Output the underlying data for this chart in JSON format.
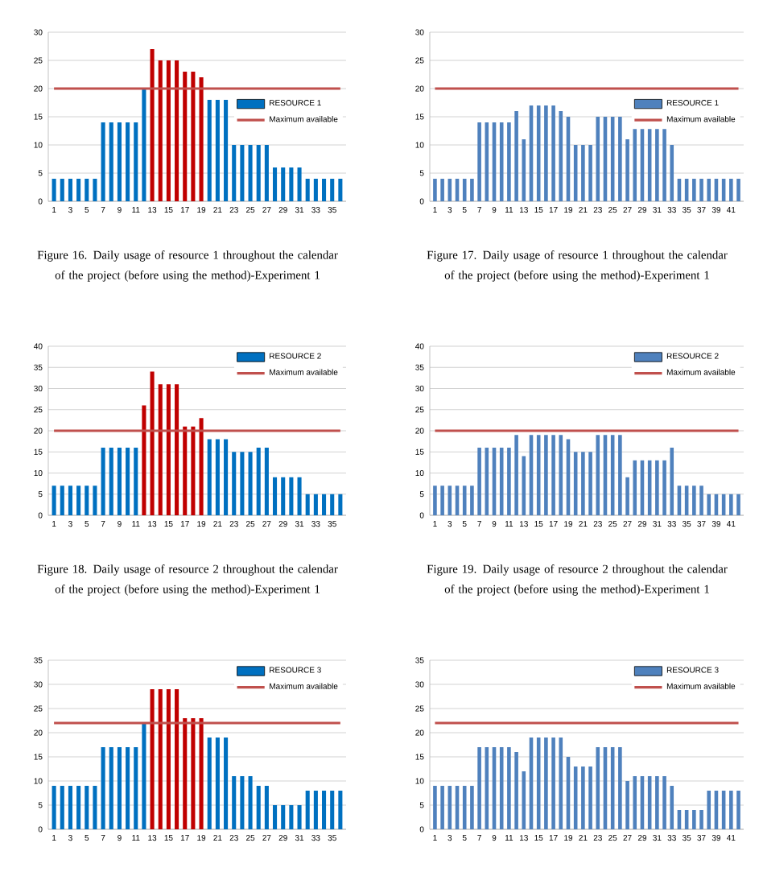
{
  "chart_data": [
    {
      "type": "bar",
      "categories": [
        "1",
        null,
        "3",
        null,
        "5",
        null,
        "7",
        null,
        "9",
        null,
        "11",
        null,
        "13",
        null,
        "15",
        null,
        "17",
        null,
        "19",
        null,
        "21",
        null,
        "23",
        null,
        "25",
        null,
        "27",
        null,
        "29",
        null,
        "31",
        null,
        "33",
        null,
        "35",
        null
      ],
      "ylim": [
        0,
        30
      ],
      "yticks": [
        0,
        5,
        10,
        15,
        20,
        25,
        30
      ],
      "grid": "y",
      "legend": "right",
      "annotations": [
        "Figure 16. Daily usage of resource 1 throughout the calendar of the project (before using the method)-Experiment 1"
      ],
      "series": [
        {
          "name": "RESOURCE 1",
          "color": "#0070c0",
          "values": [
            4,
            4,
            4,
            4,
            4,
            4,
            14,
            14,
            14,
            14,
            14,
            20,
            27,
            25,
            25,
            25,
            23,
            23,
            22,
            18,
            18,
            18,
            10,
            10,
            10,
            10,
            10,
            6,
            6,
            6,
            6,
            4,
            4,
            4,
            4,
            4
          ],
          "colors": [
            "#0070c0",
            "#0070c0",
            "#0070c0",
            "#0070c0",
            "#0070c0",
            "#0070c0",
            "#0070c0",
            "#0070c0",
            "#0070c0",
            "#0070c0",
            "#0070c0",
            "#0070c0",
            "#c00000",
            "#c00000",
            "#c00000",
            "#c00000",
            "#c00000",
            "#c00000",
            "#c00000",
            "#0070c0",
            "#0070c0",
            "#0070c0",
            "#0070c0",
            "#0070c0",
            "#0070c0",
            "#0070c0",
            "#0070c0",
            "#0070c0",
            "#0070c0",
            "#0070c0",
            "#0070c0",
            "#0070c0",
            "#0070c0",
            "#0070c0",
            "#0070c0",
            "#0070c0"
          ]
        },
        {
          "name": "Maximum available",
          "type": "line",
          "color": "#c0504d",
          "values": [
            20,
            20,
            20,
            20,
            20,
            20,
            20,
            20,
            20,
            20,
            20,
            20,
            20,
            20,
            20,
            20,
            20,
            20,
            20,
            20,
            20,
            20,
            20,
            20,
            20,
            20,
            20,
            20,
            20,
            20,
            20,
            20,
            20,
            20,
            20,
            20
          ]
        }
      ]
    },
    {
      "type": "bar",
      "categories": [
        "1",
        null,
        "3",
        null,
        "5",
        null,
        "7",
        null,
        "9",
        null,
        "11",
        null,
        "13",
        null,
        "15",
        null,
        "17",
        null,
        "19",
        null,
        "21",
        null,
        "23",
        null,
        "25",
        null,
        "27",
        null,
        "29",
        null,
        "31",
        null,
        "33",
        null,
        "35",
        null,
        "37",
        null,
        "39",
        null,
        "41",
        null
      ],
      "ylim": [
        0,
        30
      ],
      "yticks": [
        0,
        5,
        10,
        15,
        20,
        25,
        30
      ],
      "grid": "y",
      "legend": "right",
      "annotations": [
        "Figure 17. Daily usage of resource 1 throughout the calendar of the project (before using the method)-Experiment 1"
      ],
      "series": [
        {
          "name": "RESOURCE 1",
          "color": "#4f81bd",
          "values": [
            4,
            4,
            4,
            4,
            4,
            4,
            14,
            14,
            14,
            14,
            14,
            16,
            11,
            17,
            17,
            17,
            17,
            16,
            15,
            10,
            10,
            10,
            15,
            15,
            15,
            15,
            11,
            13,
            13,
            13,
            13,
            13,
            10,
            4,
            4,
            4,
            4,
            4,
            4,
            4,
            4,
            4
          ]
        },
        {
          "name": "Maximum available",
          "type": "line",
          "color": "#c0504d",
          "values": [
            20,
            20,
            20,
            20,
            20,
            20,
            20,
            20,
            20,
            20,
            20,
            20,
            20,
            20,
            20,
            20,
            20,
            20,
            20,
            20,
            20,
            20,
            20,
            20,
            20,
            20,
            20,
            20,
            20,
            20,
            20,
            20,
            20,
            20,
            20,
            20,
            20,
            20,
            20,
            20,
            20,
            20
          ]
        }
      ]
    },
    {
      "type": "bar",
      "categories": [
        "1",
        null,
        "3",
        null,
        "5",
        null,
        "7",
        null,
        "9",
        null,
        "11",
        null,
        "13",
        null,
        "15",
        null,
        "17",
        null,
        "19",
        null,
        "21",
        null,
        "23",
        null,
        "25",
        null,
        "27",
        null,
        "29",
        null,
        "31",
        null,
        "33",
        null,
        "35",
        null
      ],
      "ylim": [
        0,
        40
      ],
      "yticks": [
        0,
        5,
        10,
        15,
        20,
        25,
        30,
        35,
        40
      ],
      "grid": "y",
      "legend": "top right",
      "annotations": [
        "Figure 18. Daily usage of resource 2 throughout the calendar of the project (before using the method)-Experiment 1"
      ],
      "series": [
        {
          "name": "RESOURCE 2",
          "color": "#0070c0",
          "values": [
            7,
            7,
            7,
            7,
            7,
            7,
            16,
            16,
            16,
            16,
            16,
            26,
            34,
            31,
            31,
            31,
            21,
            21,
            23,
            18,
            18,
            18,
            15,
            15,
            15,
            16,
            16,
            9,
            9,
            9,
            9,
            5,
            5,
            5,
            5,
            5
          ],
          "colors": [
            "#0070c0",
            "#0070c0",
            "#0070c0",
            "#0070c0",
            "#0070c0",
            "#0070c0",
            "#0070c0",
            "#0070c0",
            "#0070c0",
            "#0070c0",
            "#0070c0",
            "#c00000",
            "#c00000",
            "#c00000",
            "#c00000",
            "#c00000",
            "#c00000",
            "#c00000",
            "#c00000",
            "#0070c0",
            "#0070c0",
            "#0070c0",
            "#0070c0",
            "#0070c0",
            "#0070c0",
            "#0070c0",
            "#0070c0",
            "#0070c0",
            "#0070c0",
            "#0070c0",
            "#0070c0",
            "#0070c0",
            "#0070c0",
            "#0070c0",
            "#0070c0",
            "#0070c0"
          ]
        },
        {
          "name": "Maximum available",
          "type": "line",
          "color": "#c0504d",
          "values": [
            20,
            20,
            20,
            20,
            20,
            20,
            20,
            20,
            20,
            20,
            20,
            20,
            20,
            20,
            20,
            20,
            20,
            20,
            20,
            20,
            20,
            20,
            20,
            20,
            20,
            20,
            20,
            20,
            20,
            20,
            20,
            20,
            20,
            20,
            20,
            20
          ]
        }
      ]
    },
    {
      "type": "bar",
      "categories": [
        "1",
        null,
        "3",
        null,
        "5",
        null,
        "7",
        null,
        "9",
        null,
        "11",
        null,
        "13",
        null,
        "15",
        null,
        "17",
        null,
        "19",
        null,
        "21",
        null,
        "23",
        null,
        "25",
        null,
        "27",
        null,
        "29",
        null,
        "31",
        null,
        "33",
        null,
        "35",
        null,
        "37",
        null,
        "39",
        null,
        "41",
        null
      ],
      "ylim": [
        0,
        40
      ],
      "yticks": [
        0,
        5,
        10,
        15,
        20,
        25,
        30,
        35,
        40
      ],
      "grid": "y",
      "legend": "top right",
      "annotations": [
        "Figure 19. Daily usage of resource 2 throughout the calendar of the project (before using the method)-Experiment 1"
      ],
      "series": [
        {
          "name": "RESOURCE 2",
          "color": "#4f81bd",
          "values": [
            7,
            7,
            7,
            7,
            7,
            7,
            16,
            16,
            16,
            16,
            16,
            19,
            14,
            19,
            19,
            19,
            19,
            19,
            18,
            15,
            15,
            15,
            19,
            19,
            19,
            19,
            9,
            13,
            13,
            13,
            13,
            13,
            16,
            7,
            7,
            7,
            7,
            5,
            5,
            5,
            5,
            5
          ]
        },
        {
          "name": "Maximum available",
          "type": "line",
          "color": "#c0504d",
          "values": [
            20,
            20,
            20,
            20,
            20,
            20,
            20,
            20,
            20,
            20,
            20,
            20,
            20,
            20,
            20,
            20,
            20,
            20,
            20,
            20,
            20,
            20,
            20,
            20,
            20,
            20,
            20,
            20,
            20,
            20,
            20,
            20,
            20,
            20,
            20,
            20,
            20,
            20,
            20,
            20,
            20,
            20
          ]
        }
      ]
    },
    {
      "type": "bar",
      "categories": [
        "1",
        null,
        "3",
        null,
        "5",
        null,
        "7",
        null,
        "9",
        null,
        "11",
        null,
        "13",
        null,
        "15",
        null,
        "17",
        null,
        "19",
        null,
        "21",
        null,
        "23",
        null,
        "25",
        null,
        "27",
        null,
        "29",
        null,
        "31",
        null,
        "33",
        null,
        "35",
        null
      ],
      "ylim": [
        0,
        35
      ],
      "yticks": [
        0,
        5,
        10,
        15,
        20,
        25,
        30,
        35
      ],
      "grid": "y",
      "legend": "top right",
      "series": [
        {
          "name": "RESOURCE 3",
          "color": "#0070c0",
          "values": [
            9,
            9,
            9,
            9,
            9,
            9,
            17,
            17,
            17,
            17,
            17,
            22,
            29,
            29,
            29,
            29,
            23,
            23,
            23,
            19,
            19,
            19,
            11,
            11,
            11,
            9,
            9,
            5,
            5,
            5,
            5,
            8,
            8,
            8,
            8,
            8
          ],
          "colors": [
            "#0070c0",
            "#0070c0",
            "#0070c0",
            "#0070c0",
            "#0070c0",
            "#0070c0",
            "#0070c0",
            "#0070c0",
            "#0070c0",
            "#0070c0",
            "#0070c0",
            "#0070c0",
            "#c00000",
            "#c00000",
            "#c00000",
            "#c00000",
            "#c00000",
            "#c00000",
            "#c00000",
            "#0070c0",
            "#0070c0",
            "#0070c0",
            "#0070c0",
            "#0070c0",
            "#0070c0",
            "#0070c0",
            "#0070c0",
            "#0070c0",
            "#0070c0",
            "#0070c0",
            "#0070c0",
            "#0070c0",
            "#0070c0",
            "#0070c0",
            "#0070c0",
            "#0070c0"
          ]
        },
        {
          "name": "Maximum available",
          "type": "line",
          "color": "#c0504d",
          "values": [
            22,
            22,
            22,
            22,
            22,
            22,
            22,
            22,
            22,
            22,
            22,
            22,
            22,
            22,
            22,
            22,
            22,
            22,
            22,
            22,
            22,
            22,
            22,
            22,
            22,
            22,
            22,
            22,
            22,
            22,
            22,
            22,
            22,
            22,
            22,
            22
          ]
        }
      ]
    },
    {
      "type": "bar",
      "categories": [
        "1",
        null,
        "3",
        null,
        "5",
        null,
        "7",
        null,
        "9",
        null,
        "11",
        null,
        "13",
        null,
        "15",
        null,
        "17",
        null,
        "19",
        null,
        "21",
        null,
        "23",
        null,
        "25",
        null,
        "27",
        null,
        "29",
        null,
        "31",
        null,
        "33",
        null,
        "35",
        null,
        "37",
        null,
        "39",
        null,
        "41",
        null
      ],
      "ylim": [
        0,
        35
      ],
      "yticks": [
        0,
        5,
        10,
        15,
        20,
        25,
        30,
        35
      ],
      "grid": "y",
      "legend": "top right",
      "series": [
        {
          "name": "RESOURCE 3",
          "color": "#4f81bd",
          "values": [
            9,
            9,
            9,
            9,
            9,
            9,
            17,
            17,
            17,
            17,
            17,
            16,
            12,
            19,
            19,
            19,
            19,
            19,
            15,
            13,
            13,
            13,
            17,
            17,
            17,
            17,
            10,
            11,
            11,
            11,
            11,
            11,
            9,
            4,
            4,
            4,
            4,
            8,
            8,
            8,
            8,
            8
          ]
        },
        {
          "name": "Maximum available",
          "type": "line",
          "color": "#c0504d",
          "values": [
            22,
            22,
            22,
            22,
            22,
            22,
            22,
            22,
            22,
            22,
            22,
            22,
            22,
            22,
            22,
            22,
            22,
            22,
            22,
            22,
            22,
            22,
            22,
            22,
            22,
            22,
            22,
            22,
            22,
            22,
            22,
            22,
            22,
            22,
            22,
            22,
            22,
            22,
            22,
            22,
            22,
            22
          ]
        }
      ]
    }
  ]
}
